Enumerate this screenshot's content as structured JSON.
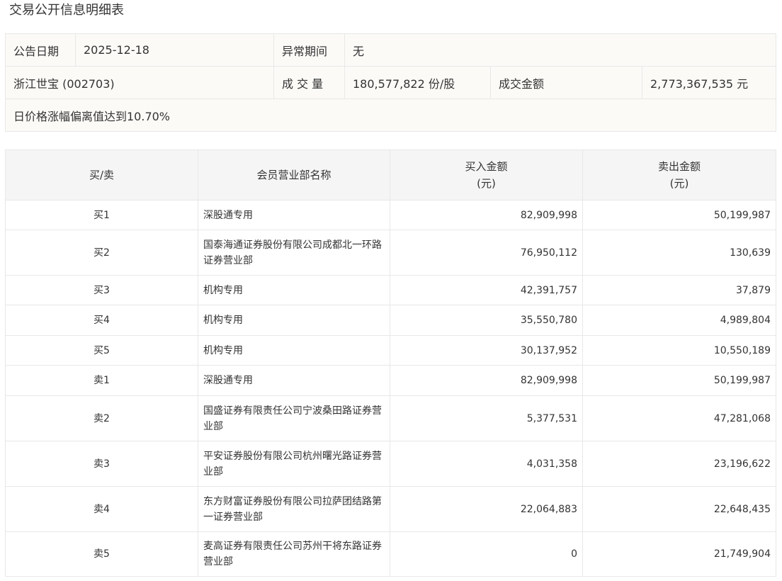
{
  "title": "交易公开信息明细表",
  "info": {
    "date_label": "公告日期",
    "date_value": "2025-12-18",
    "period_label": "异常期间",
    "period_value": "无",
    "stock": "浙江世宝 (002703)",
    "volume_label": "成 交 量",
    "volume_value": "180,577,822 份/股",
    "amount_label": "成交金额",
    "amount_value": "2,773,367,535 元",
    "reason": "日价格涨幅偏离值达到10.70%"
  },
  "table": {
    "headers": {
      "side": "买/卖",
      "branch": "会员营业部名称",
      "buy": "买入金额",
      "buy_unit": "(元)",
      "sell": "卖出金额",
      "sell_unit": "(元)"
    },
    "rows": [
      {
        "side": "买1",
        "branch": "深股通专用",
        "buy": "82,909,998",
        "sell": "50,199,987"
      },
      {
        "side": "买2",
        "branch": "国泰海通证券股份有限公司成都北一环路证券营业部",
        "buy": "76,950,112",
        "sell": "130,639"
      },
      {
        "side": "买3",
        "branch": "机构专用",
        "buy": "42,391,757",
        "sell": "37,879"
      },
      {
        "side": "买4",
        "branch": "机构专用",
        "buy": "35,550,780",
        "sell": "4,989,804"
      },
      {
        "side": "买5",
        "branch": "机构专用",
        "buy": "30,137,952",
        "sell": "10,550,189"
      },
      {
        "side": "卖1",
        "branch": "深股通专用",
        "buy": "82,909,998",
        "sell": "50,199,987"
      },
      {
        "side": "卖2",
        "branch": "国盛证券有限责任公司宁波桑田路证券营业部",
        "buy": "5,377,531",
        "sell": "47,281,068"
      },
      {
        "side": "卖3",
        "branch": "平安证券股份有限公司杭州曙光路证券营业部",
        "buy": "4,031,358",
        "sell": "23,196,622"
      },
      {
        "side": "卖4",
        "branch": "东方财富证券股份有限公司拉萨团结路第一证券营业部",
        "buy": "22,064,883",
        "sell": "22,648,435"
      },
      {
        "side": "卖5",
        "branch": "麦高证券有限责任公司苏州干将东路证券营业部",
        "buy": "0",
        "sell": "21,749,904"
      }
    ]
  }
}
